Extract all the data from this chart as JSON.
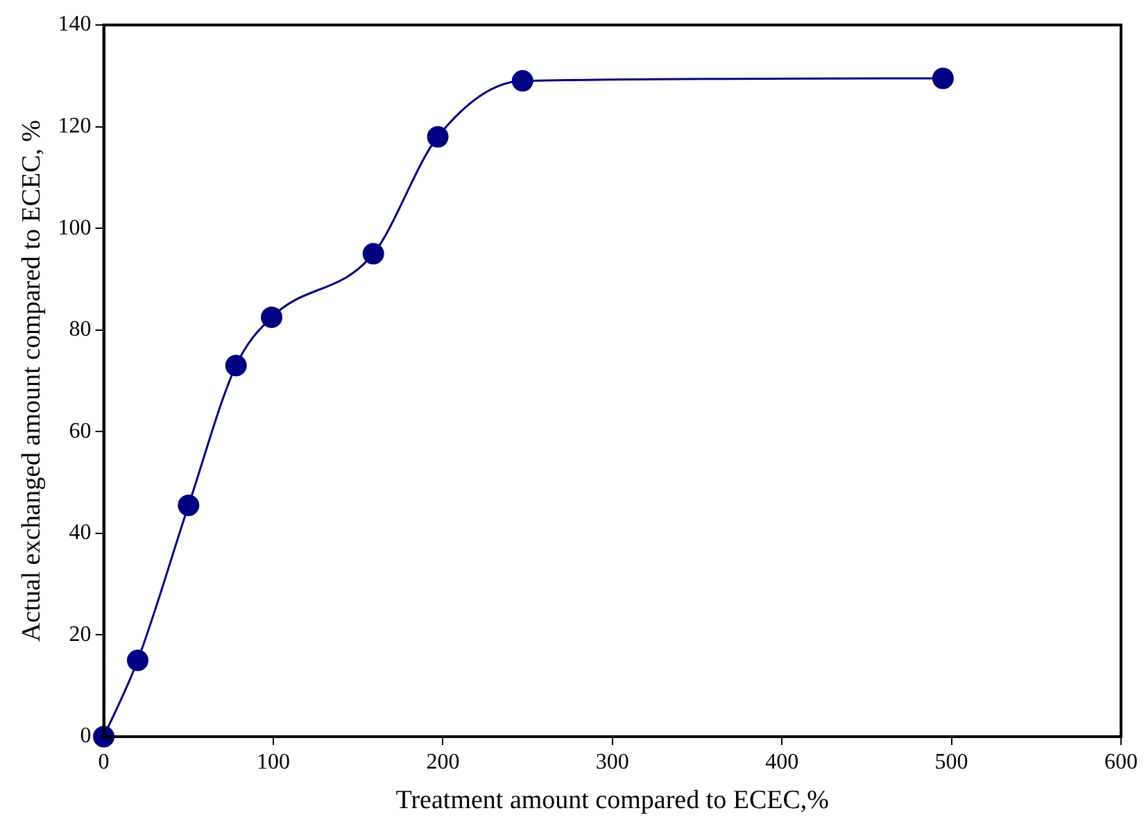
{
  "chart_data": {
    "type": "line",
    "xlabel": "Treatment amount compared to ECEC,%",
    "ylabel": "Actual exchanged amount compared to ECEC, %",
    "x": [
      0,
      20,
      50,
      78,
      99,
      159,
      197,
      247,
      495
    ],
    "series": [
      {
        "color": "#000080",
        "values": [
          0,
          15,
          45.5,
          73,
          82.5,
          95,
          118,
          129,
          129.5
        ]
      }
    ],
    "xlim": [
      0,
      600
    ],
    "xticks": [
      0,
      100,
      200,
      300,
      400,
      500,
      600
    ],
    "ylim": [
      0,
      140
    ],
    "yticks": [
      0,
      20,
      40,
      60,
      80,
      100,
      120,
      140
    ],
    "grid": false,
    "legend": false,
    "marker": "circle",
    "line_style": "solid"
  }
}
